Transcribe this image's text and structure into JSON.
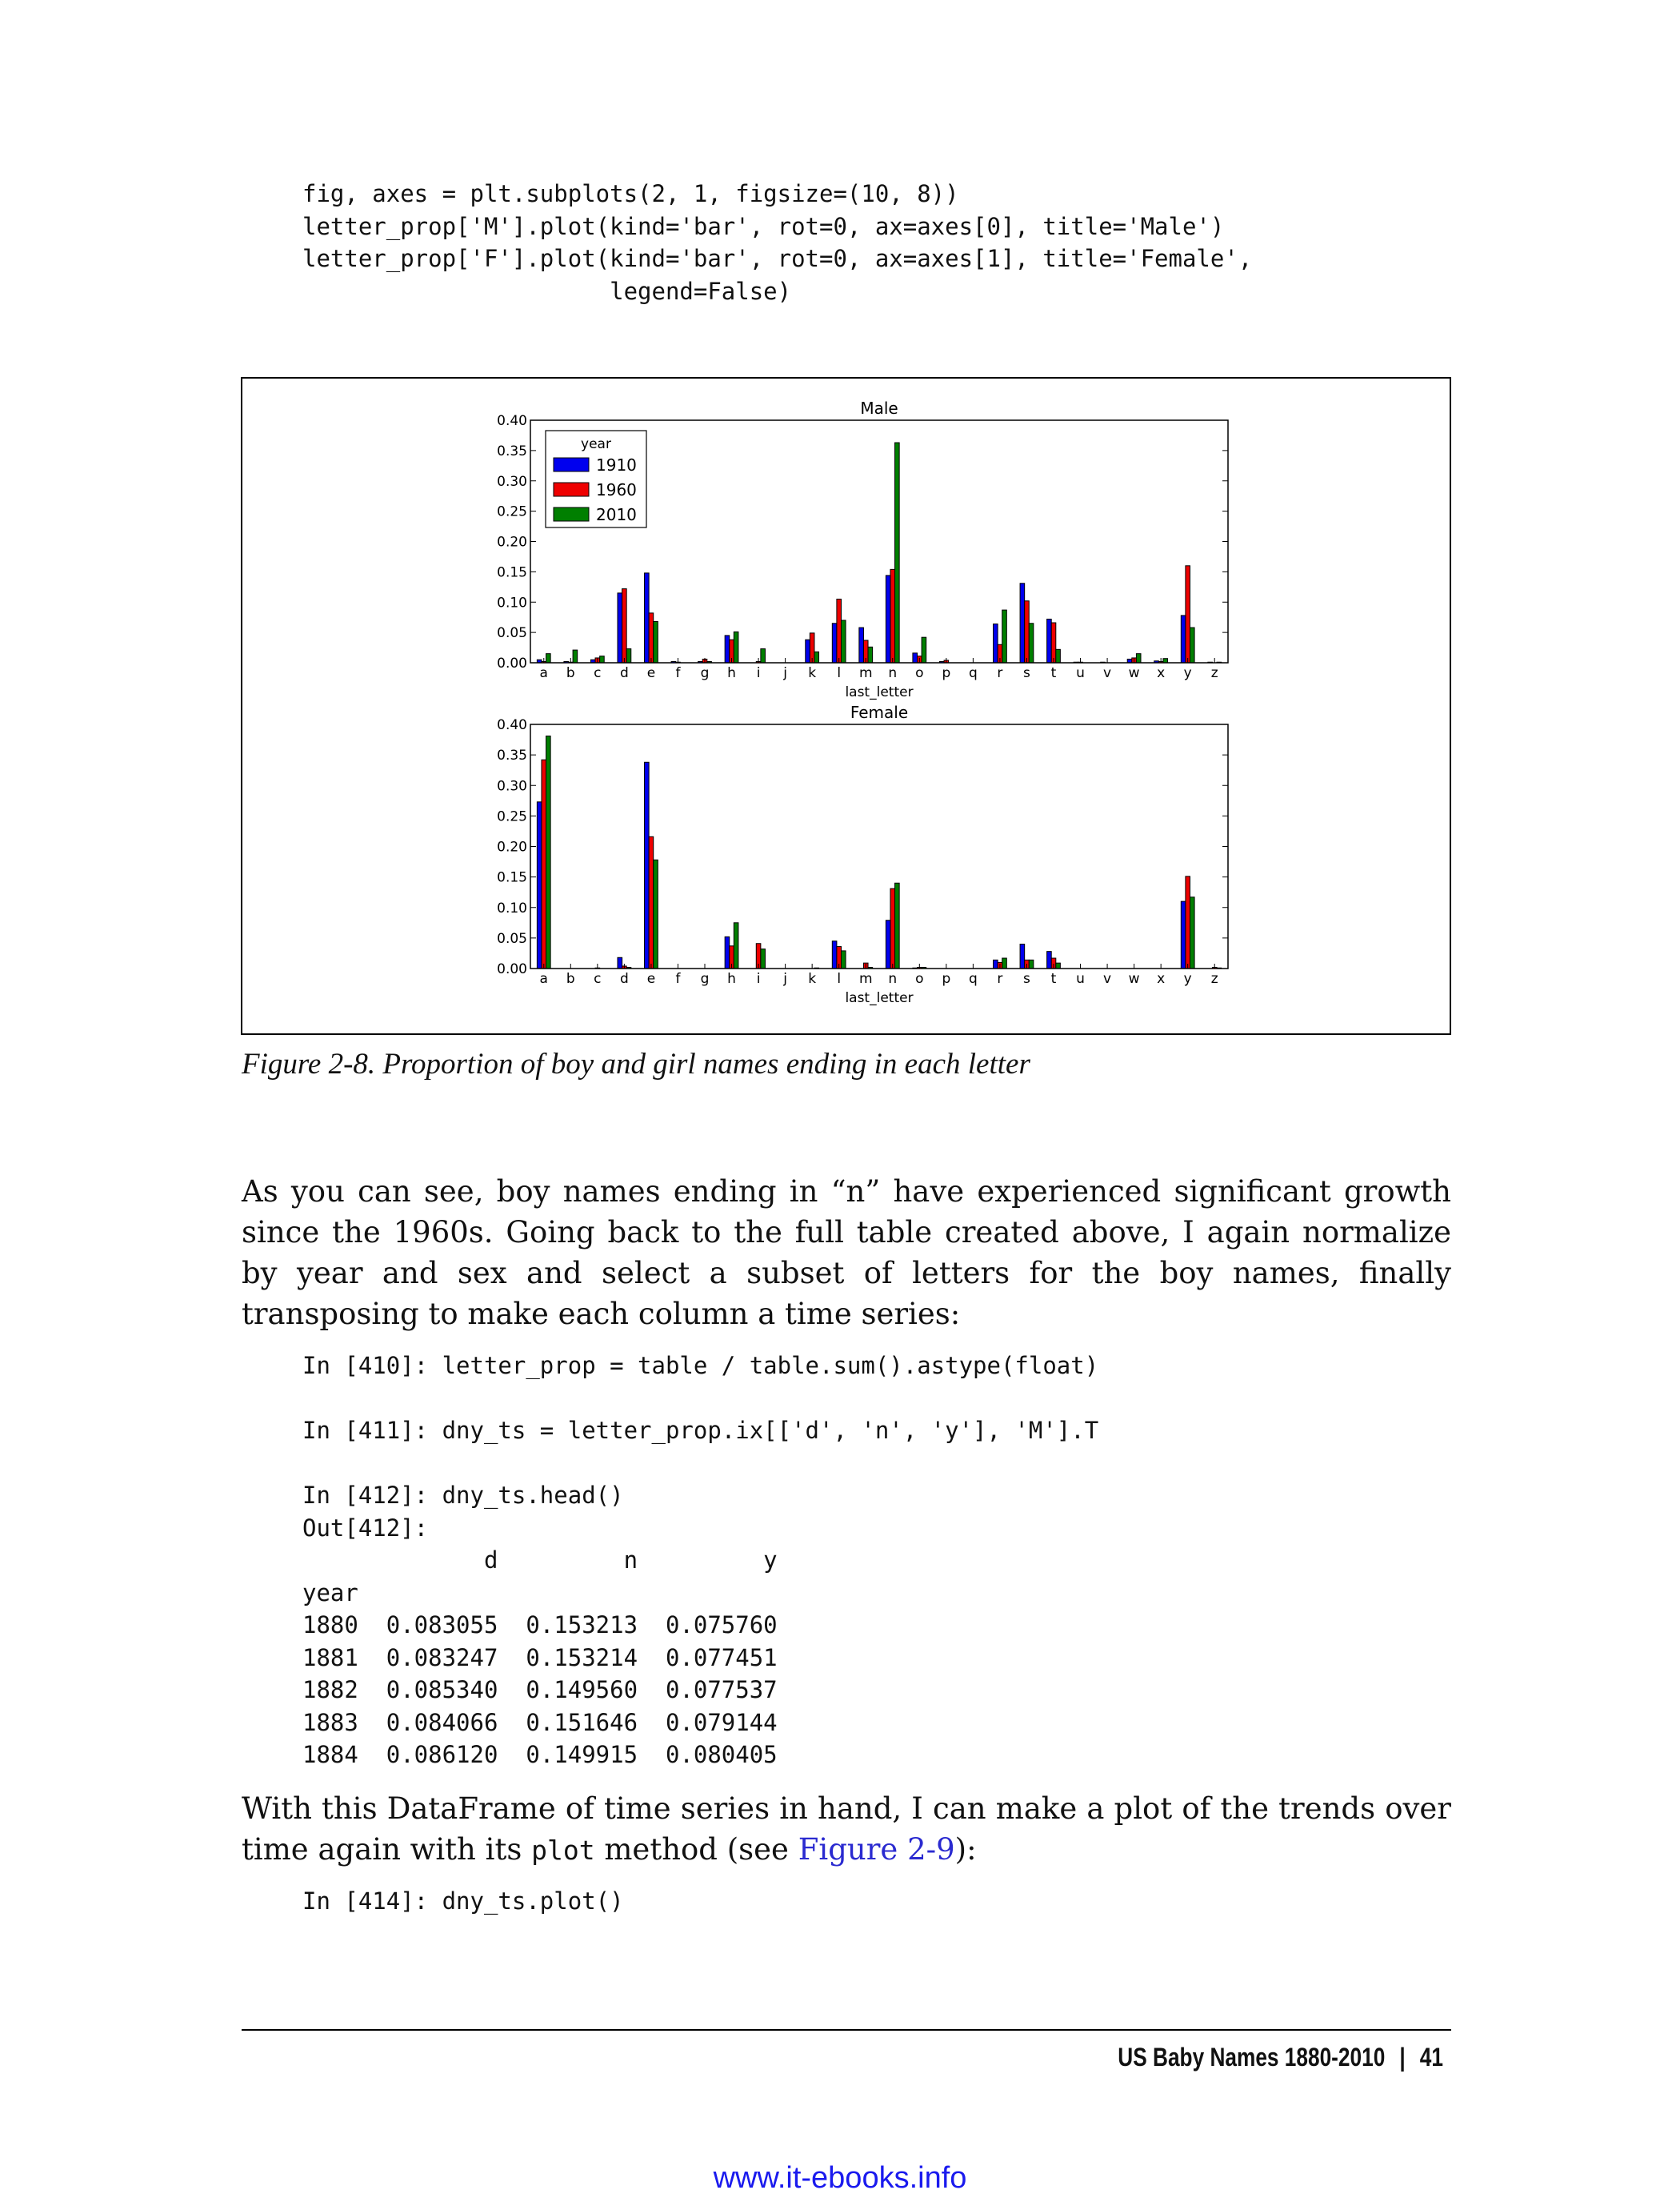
{
  "code_top": [
    "fig, axes = plt.subplots(2, 1, figsize=(10, 8))",
    "letter_prop['M'].plot(kind='bar', rot=0, ax=axes[0], title='Male')",
    "letter_prop['F'].plot(kind='bar', rot=0, ax=axes[1], title='Female',",
    "                      legend=False)"
  ],
  "caption": "Figure 2-8. Proportion of boy and girl names ending in each letter",
  "paragraph1": "As you can see, boy names ending in “n” have experienced significant growth since the 1960s. Going back to the full table created above, I again normalize by year and sex and select a subset of letters for the boy names, finally transposing to make each column a time series:",
  "code_middle": [
    "In [410]: letter_prop = table / table.sum().astype(float)",
    "",
    "In [411]: dny_ts = letter_prop.ix[['d', 'n', 'y'], 'M'].T",
    "",
    "In [412]: dny_ts.head()",
    "Out[412]:",
    "             d         n         y",
    "year",
    "1880  0.083055  0.153213  0.075760",
    "1881  0.083247  0.153214  0.077451",
    "1882  0.085340  0.149560  0.077537",
    "1883  0.084066  0.151646  0.079144",
    "1884  0.086120  0.149915  0.080405"
  ],
  "paragraph2": {
    "before": "With this DataFrame of time series in hand, I can make a plot of the trends over time again with its ",
    "code": "plot",
    "middle": " method (see ",
    "link": "Figure 2-9",
    "after": "):"
  },
  "code_bottom": [
    "In [414]: dny_ts.plot()"
  ],
  "footer": {
    "section": "US Baby Names 1880-2010",
    "separator": "|",
    "page": "41"
  },
  "source_url": "www.it-ebooks.info",
  "colors": {
    "1910": "#0000ee",
    "1960": "#ee0000",
    "2010": "#007f00",
    "link": "#2a2ad0"
  },
  "chart_data": [
    {
      "type": "bar",
      "title": "Male",
      "xlabel": "last_letter",
      "ylabel": "",
      "ylim": [
        0,
        0.4
      ],
      "yticks": [
        "0.00",
        "0.05",
        "0.10",
        "0.15",
        "0.20",
        "0.25",
        "0.30",
        "0.35",
        "0.40"
      ],
      "legend": {
        "title": "year",
        "placement": "top-left"
      },
      "categories": [
        "a",
        "b",
        "c",
        "d",
        "e",
        "f",
        "g",
        "h",
        "i",
        "j",
        "k",
        "l",
        "m",
        "n",
        "o",
        "p",
        "q",
        "r",
        "s",
        "t",
        "u",
        "v",
        "w",
        "x",
        "y",
        "z"
      ],
      "series": [
        {
          "name": "1910",
          "values": [
            0.005,
            0.002,
            0.005,
            0.115,
            0.148,
            0.002,
            0.002,
            0.045,
            0.0,
            0.0,
            0.038,
            0.065,
            0.058,
            0.144,
            0.016,
            0.002,
            0.0,
            0.064,
            0.131,
            0.072,
            0.001,
            0.001,
            0.006,
            0.003,
            0.078,
            0.001
          ]
        },
        {
          "name": "1960",
          "values": [
            0.002,
            0.001,
            0.008,
            0.122,
            0.082,
            0.001,
            0.006,
            0.038,
            0.002,
            0.0,
            0.049,
            0.105,
            0.037,
            0.154,
            0.011,
            0.004,
            0.0,
            0.03,
            0.102,
            0.066,
            0.001,
            0.0,
            0.008,
            0.002,
            0.16,
            0.0
          ]
        },
        {
          "name": "2010",
          "values": [
            0.015,
            0.021,
            0.011,
            0.023,
            0.068,
            0.0,
            0.002,
            0.051,
            0.023,
            0.0,
            0.018,
            0.07,
            0.026,
            0.363,
            0.042,
            0.0,
            0.0,
            0.087,
            0.065,
            0.022,
            0.0,
            0.0,
            0.015,
            0.007,
            0.058,
            0.001
          ]
        }
      ]
    },
    {
      "type": "bar",
      "title": "Female",
      "xlabel": "last_letter",
      "ylabel": "",
      "ylim": [
        0,
        0.4
      ],
      "yticks": [
        "0.00",
        "0.05",
        "0.10",
        "0.15",
        "0.20",
        "0.25",
        "0.30",
        "0.35",
        "0.40"
      ],
      "legend": null,
      "categories": [
        "a",
        "b",
        "c",
        "d",
        "e",
        "f",
        "g",
        "h",
        "i",
        "j",
        "k",
        "l",
        "m",
        "n",
        "o",
        "p",
        "q",
        "r",
        "s",
        "t",
        "u",
        "v",
        "w",
        "x",
        "y",
        "z"
      ],
      "series": [
        {
          "name": "1910",
          "values": [
            0.273,
            0.0,
            0.0,
            0.018,
            0.338,
            0.0,
            0.0,
            0.052,
            0.0,
            0.0,
            0.0,
            0.045,
            0.0,
            0.079,
            0.001,
            0.0,
            0.0,
            0.014,
            0.04,
            0.028,
            0.0,
            0.0,
            0.0,
            0.0,
            0.11,
            0.0
          ]
        },
        {
          "name": "1960",
          "values": [
            0.342,
            0.0,
            0.001,
            0.004,
            0.216,
            0.0,
            0.0,
            0.037,
            0.041,
            0.0,
            0.0,
            0.036,
            0.009,
            0.131,
            0.002,
            0.0,
            0.0,
            0.01,
            0.014,
            0.017,
            0.0,
            0.0,
            0.0,
            0.0,
            0.151,
            0.002
          ]
        },
        {
          "name": "2010",
          "values": [
            0.381,
            0.0,
            0.0,
            0.002,
            0.178,
            0.0,
            0.0,
            0.075,
            0.032,
            0.0,
            0.001,
            0.029,
            0.002,
            0.14,
            0.002,
            0.0,
            0.0,
            0.017,
            0.014,
            0.009,
            0.0,
            0.0,
            0.0,
            0.0,
            0.117,
            0.001
          ]
        }
      ]
    }
  ]
}
